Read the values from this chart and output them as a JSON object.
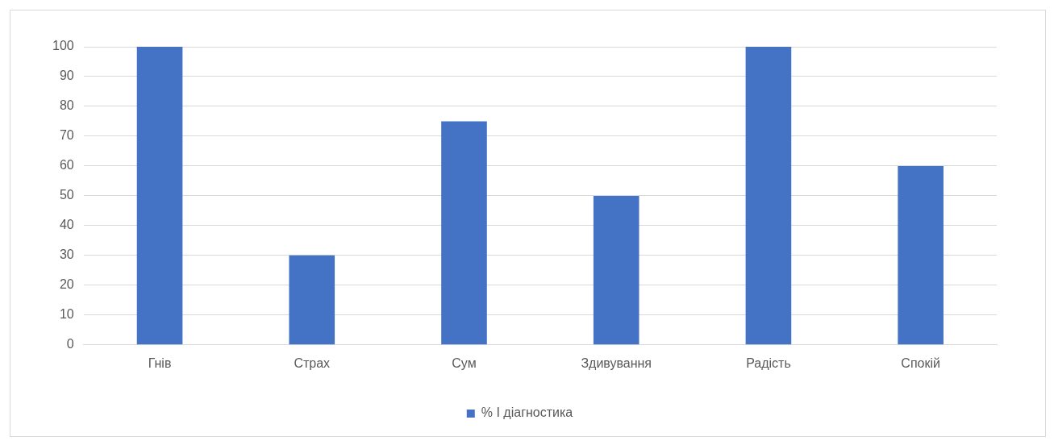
{
  "chart_data": {
    "type": "bar",
    "categories": [
      "Гнів",
      "Страх",
      "Сум",
      "Здивування",
      "Радість",
      "Спокій"
    ],
    "series": [
      {
        "name": "% I діагностика",
        "color": "#4472c4",
        "values": [
          100,
          30,
          75,
          50,
          100,
          60
        ]
      }
    ],
    "ylim": [
      0,
      100
    ],
    "yticks": [
      0,
      10,
      20,
      30,
      40,
      50,
      60,
      70,
      80,
      90,
      100
    ],
    "grid": "y",
    "legend": "bottom"
  }
}
